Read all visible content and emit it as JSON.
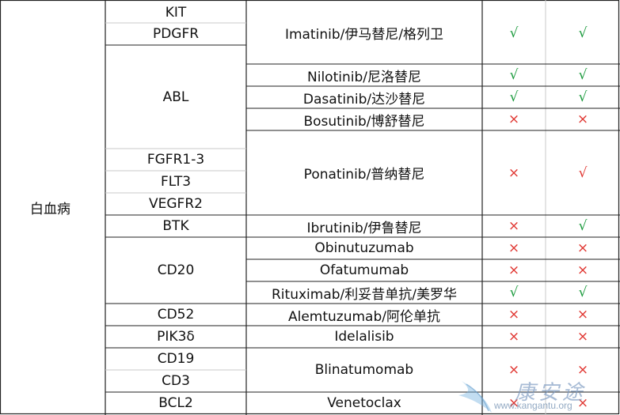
{
  "table": {
    "disease": "白血病",
    "targets": [
      "KIT",
      "PDGFR",
      "ABL",
      "FGFR1-3",
      "FLT3",
      "VEGFR2",
      "BTK",
      "CD20",
      "CD52",
      "PIK3δ",
      "CD19",
      "CD3",
      "BCL2"
    ],
    "drugs": [
      {
        "name": "Imatinib/伊马替尼/格列卫",
        "col_a": "√",
        "col_b": "√"
      },
      {
        "name": "Nilotinib/尼洛替尼",
        "col_a": "√",
        "col_b": "√"
      },
      {
        "name": "Dasatinib/达沙替尼",
        "col_a": "√",
        "col_b": "√"
      },
      {
        "name": "Bosutinib/博舒替尼",
        "col_a": "×",
        "col_b": "×"
      },
      {
        "name": "Ponatinib/普纳替尼",
        "col_a": "×",
        "col_b": "√"
      },
      {
        "name": "Ibrutinib/伊鲁替尼",
        "col_a": "×",
        "col_b": "√"
      },
      {
        "name": "Obinutuzumab",
        "col_a": "×",
        "col_b": "×"
      },
      {
        "name": "Ofatumumab",
        "col_a": "×",
        "col_b": "×"
      },
      {
        "name": "Rituximab/利妥昔单抗/美罗华",
        "col_a": "√",
        "col_b": "√"
      },
      {
        "name": "Alemtuzumab/阿伦单抗",
        "col_a": "×",
        "col_b": "×"
      },
      {
        "name": "Idelalisib",
        "col_a": "×",
        "col_b": "×"
      },
      {
        "name": "Blinatumomab",
        "col_a": "×",
        "col_b": "×"
      },
      {
        "name": "Venetoclax",
        "col_a": "×",
        "col_b": "×"
      }
    ]
  },
  "watermark": {
    "text": "康安途",
    "url": "www.kangantu.org",
    "colors": {
      "wing": "#7fb7e0",
      "text": "#7f98bf"
    }
  },
  "colors": {
    "check": "#1a9a3c",
    "cross": "#e0342f",
    "border": "#333333",
    "grid": "#c8c8c8"
  }
}
